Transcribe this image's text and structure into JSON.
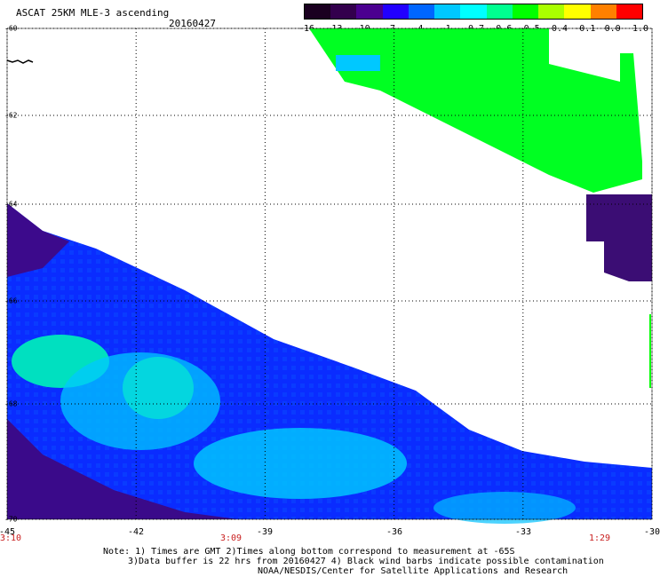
{
  "title": "ASCAT 25KM MLE-3 ascending",
  "date": "20160427",
  "colorbar": {
    "labels": [
      "-16",
      "-13",
      "-10",
      "-7",
      "-4",
      "-1",
      "-0.7",
      "-0.6",
      "-0.5",
      "-0.4",
      "-0.1",
      "0.0",
      "1.0"
    ],
    "colors": [
      "#1a0020",
      "#33004d",
      "#4b0090",
      "#2200ff",
      "#0066ff",
      "#00c8ff",
      "#00ffff",
      "#00ff90",
      "#00ff00",
      "#aaff00",
      "#ffff00",
      "#ff8000",
      "#ff0000"
    ]
  },
  "map": {
    "lat_labels": [
      "-60",
      "-62",
      "-64",
      "-66",
      "-68",
      "-70"
    ],
    "lon_labels": [
      "-45",
      "-42",
      "-39",
      "-36",
      "-33",
      "-30"
    ],
    "time_labels": [
      "3:10",
      "3:09",
      "1:29"
    ]
  },
  "notes": {
    "line1": "Note: 1) Times are GMT 2)Times along bottom correspond to measurement at -65S",
    "line2": "3)Data buffer is 22 hrs from 20160427 4) Black wind barbs indicate possible contamination",
    "line3": "NOAA/NESDIS/Center for Satellite Applications and Research"
  }
}
